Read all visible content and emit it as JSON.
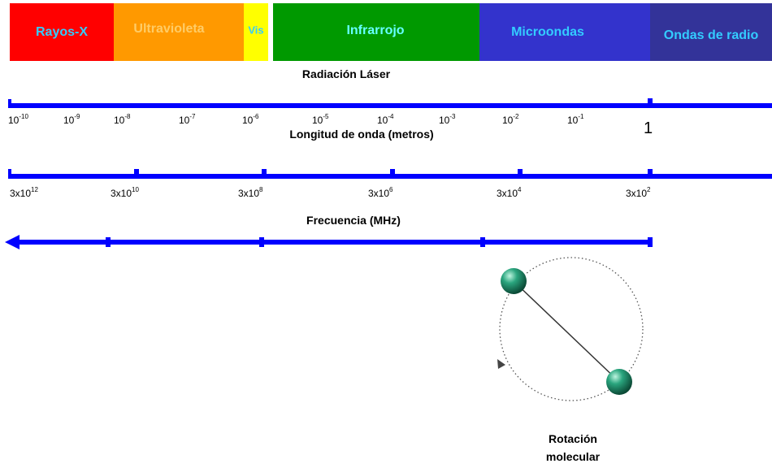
{
  "bands": [
    "Rayos-X",
    "Ultravioleta",
    "Vis",
    "Infrarrojo",
    "Microondas",
    "Ondas de radio"
  ],
  "laser_label": "Radiación Láser",
  "wavelength": {
    "ticks": [
      {
        "base": "10",
        "exp": "-10"
      },
      {
        "base": "10",
        "exp": "-9"
      },
      {
        "base": "10",
        "exp": "-8"
      },
      {
        "base": "10",
        "exp": "-7"
      },
      {
        "base": "10",
        "exp": "-6"
      },
      {
        "base": "10",
        "exp": "-5"
      },
      {
        "base": "10",
        "exp": "-4"
      },
      {
        "base": "10",
        "exp": "-3"
      },
      {
        "base": "10",
        "exp": "-2"
      },
      {
        "base": "10",
        "exp": "-1"
      },
      {
        "base": "1",
        "exp": ""
      }
    ],
    "label": "Longitud de onda  (metros)"
  },
  "frequency": {
    "ticks": [
      {
        "base": "3x10",
        "exp": "12"
      },
      {
        "base": "3x10",
        "exp": "10"
      },
      {
        "base": "3x10",
        "exp": "8"
      },
      {
        "base": "3x10",
        "exp": "6"
      },
      {
        "base": "3x10",
        "exp": "4"
      },
      {
        "base": "3x10",
        "exp": "2"
      }
    ],
    "label": "Frecuencia (MHz)"
  },
  "rotation_label": [
    "Rotación",
    "molecular"
  ]
}
